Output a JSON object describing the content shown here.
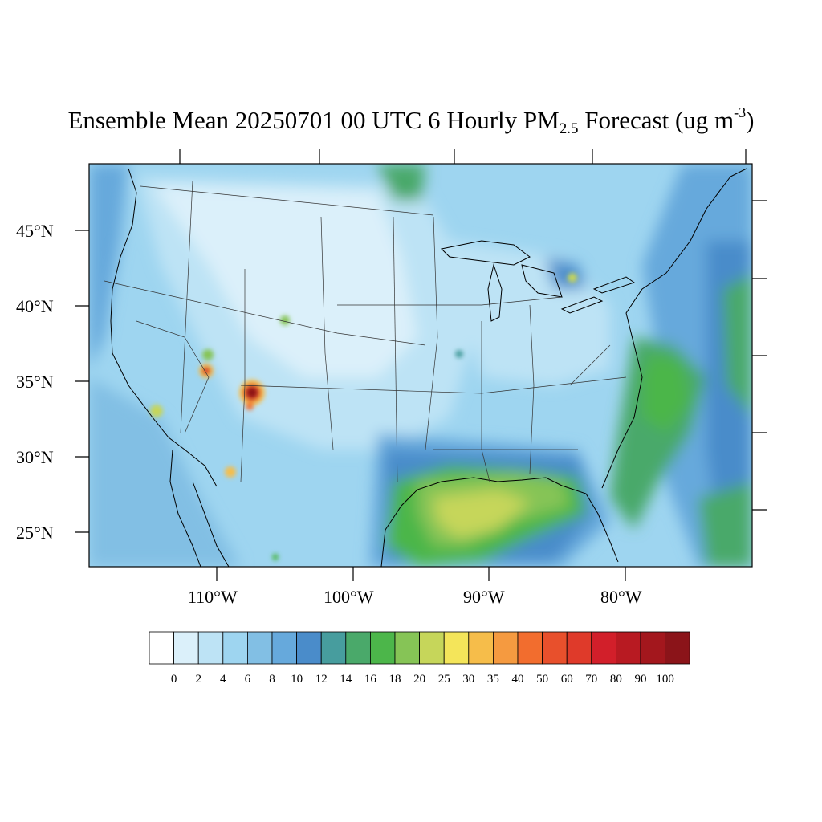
{
  "title": {
    "main": "Ensemble Mean 20250701 00 UTC 6 Hourly PM",
    "sub": "2.5",
    "after_sub": " Forecast (ug m",
    "sup": "-3",
    "close": ")"
  },
  "map": {
    "lat_labels": [
      "45°N",
      "40°N",
      "35°N",
      "30°N",
      "25°N"
    ],
    "lon_labels": [
      "110°W",
      "100°W",
      "90°W",
      "80°W"
    ]
  },
  "colorbar": {
    "colors": [
      "#ffffff",
      "#dbf0fa",
      "#bde3f5",
      "#9ed5f0",
      "#82bfe4",
      "#66a9dc",
      "#4a8cca",
      "#479d9e",
      "#4aa96a",
      "#4cb64a",
      "#86c456",
      "#c6d65a",
      "#f4e55a",
      "#f6bd4a",
      "#f59a40",
      "#f26d2e",
      "#e8502c",
      "#df3a2a",
      "#d21f2a",
      "#b81a22",
      "#a3171d",
      "#8b1419"
    ],
    "labels": [
      "0",
      "2",
      "4",
      "6",
      "8",
      "10",
      "12",
      "14",
      "16",
      "18",
      "20",
      "25",
      "30",
      "35",
      "40",
      "50",
      "60",
      "70",
      "80",
      "90",
      "100"
    ]
  }
}
